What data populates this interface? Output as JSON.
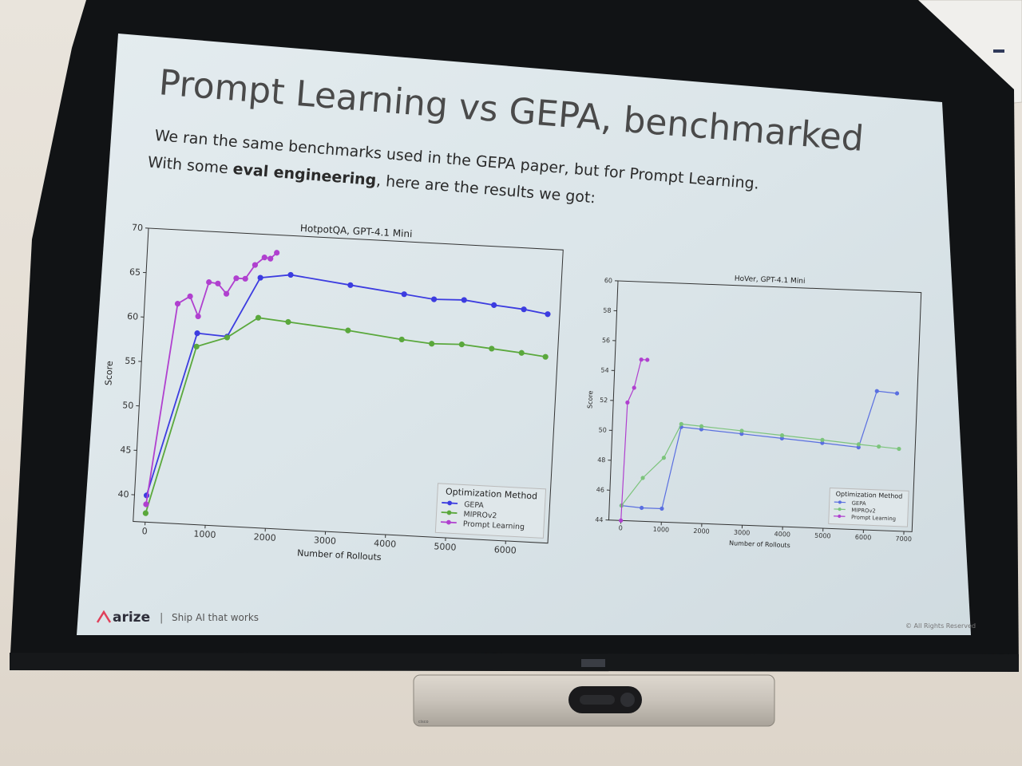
{
  "slide": {
    "title": "Prompt Learning vs GEPA, benchmarked",
    "line1": "We ran the same benchmarks used in the GEPA paper, but for Prompt Learning.",
    "line2_prefix": "With some ",
    "line2_bold": "eval engineering",
    "line2_suffix": ", here are the results we got:",
    "footer_logo": "arize",
    "footer_separator": "|",
    "footer_tagline": "Ship AI that works",
    "footer_copyright": "© All Rights Reserved"
  },
  "colors": {
    "gepa": "#3c3ce0",
    "miprov2": "#5aa83c",
    "prompt_learning": "#b040cf",
    "slide_bg": "#dce6ea",
    "screen_border": "#101214",
    "brand": "#e0405a"
  },
  "chart_data": [
    {
      "type": "line",
      "title": "HotpotQA, GPT-4.1 Mini",
      "xlabel": "Number of Rollouts",
      "ylabel": "Score",
      "xlim": [
        -200,
        6700
      ],
      "ylim": [
        37,
        70
      ],
      "xticks": [
        0,
        1000,
        2000,
        3000,
        4000,
        5000,
        6000
      ],
      "yticks": [
        40,
        45,
        50,
        55,
        60,
        65,
        70
      ],
      "legend_title": "Optimization Method",
      "legend_position": "lower-right",
      "series": [
        {
          "name": "GEPA",
          "color": "#3c3ce0",
          "x": [
            0,
            700,
            1200,
            1700,
            2200,
            3200,
            4100,
            4600,
            5100,
            5600,
            6100,
            6500
          ],
          "y": [
            40,
            58.5,
            58.3,
            65.1,
            65.6,
            64.8,
            64.1,
            63.7,
            63.8,
            63.4,
            63.1,
            62.7
          ]
        },
        {
          "name": "MIPROv2",
          "color": "#5aa83c",
          "x": [
            0,
            700,
            1200,
            1700,
            2200,
            3200,
            4100,
            4600,
            5100,
            5600,
            6100,
            6500
          ],
          "y": [
            38,
            57.0,
            58.2,
            60.6,
            60.3,
            59.7,
            59.0,
            58.7,
            58.8,
            58.5,
            58.2,
            57.9
          ]
        },
        {
          "name": "Prompt Learning",
          "color": "#b040cf",
          "x": [
            0,
            350,
            550,
            700,
            850,
            1000,
            1150,
            1300,
            1450,
            1600,
            1750,
            1850,
            1950
          ],
          "y": [
            39,
            61.7,
            62.6,
            60.4,
            64.3,
            64.2,
            63.1,
            64.9,
            64.9,
            66.5,
            67.4,
            67.3,
            68.0
          ]
        }
      ]
    },
    {
      "type": "line",
      "title": "HoVer, GPT-4.1 Mini",
      "xlabel": "Number of Rollouts",
      "ylabel": "Score",
      "xlim": [
        -300,
        7200
      ],
      "ylim": [
        44,
        60
      ],
      "xticks": [
        0,
        1000,
        2000,
        3000,
        4000,
        5000,
        6000,
        7000
      ],
      "yticks": [
        44,
        46,
        48,
        50,
        52,
        54,
        56,
        58,
        60
      ],
      "legend_title": "Optimization Method",
      "legend_position": "lower-right",
      "series": [
        {
          "name": "GEPA",
          "color": "#5a6fe0",
          "x": [
            0,
            500,
            1000,
            1400,
            1900,
            2900,
            3900,
            4900,
            5800,
            6200,
            6700
          ],
          "y": [
            45.0,
            44.9,
            44.9,
            50.4,
            50.3,
            50.1,
            49.9,
            49.7,
            49.5,
            53.3,
            53.2
          ]
        },
        {
          "name": "MIPROv2",
          "color": "#7cc47c",
          "x": [
            0,
            500,
            1000,
            1400,
            1900,
            2900,
            3900,
            4900,
            5800,
            6300,
            6800
          ],
          "y": [
            45.0,
            46.9,
            48.3,
            50.6,
            50.5,
            50.3,
            50.1,
            49.9,
            49.7,
            49.6,
            49.5
          ]
        },
        {
          "name": "Prompt Learning",
          "color": "#b040cf",
          "x": [
            0,
            50,
            200,
            350,
            500
          ],
          "y": [
            44.0,
            51.9,
            52.9,
            54.8,
            54.8
          ]
        }
      ]
    }
  ]
}
